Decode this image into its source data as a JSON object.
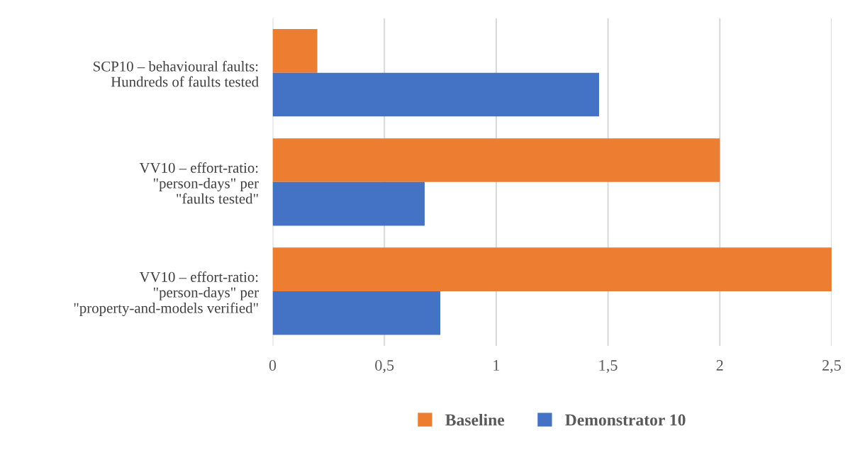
{
  "chart_data": {
    "type": "bar",
    "orientation": "horizontal",
    "categories": [
      "SCP10 – behavioural faults:\nHundreds of faults tested",
      "VV10 – effort-ratio:\n\"person-days\" per\n\"faults tested\"",
      "VV10 – effort-ratio:\n\"person-days\" per\n\"property-and-models verified\""
    ],
    "series": [
      {
        "name": "Baseline",
        "color": "#ed7d31",
        "values": [
          0.2,
          2.0,
          2.5
        ]
      },
      {
        "name": "Demonstrator 10",
        "color": "#4472c4",
        "values": [
          1.46,
          0.68,
          0.75
        ]
      }
    ],
    "xlim": [
      0,
      2.5
    ],
    "xticks": [
      0,
      {
        "value": 0.5,
        "label": "0,5"
      },
      1,
      {
        "value": 1.5,
        "label": "1,5"
      },
      2,
      {
        "value": 2.5,
        "label": "2,5"
      }
    ],
    "grid": "x",
    "legend": "bottom"
  }
}
